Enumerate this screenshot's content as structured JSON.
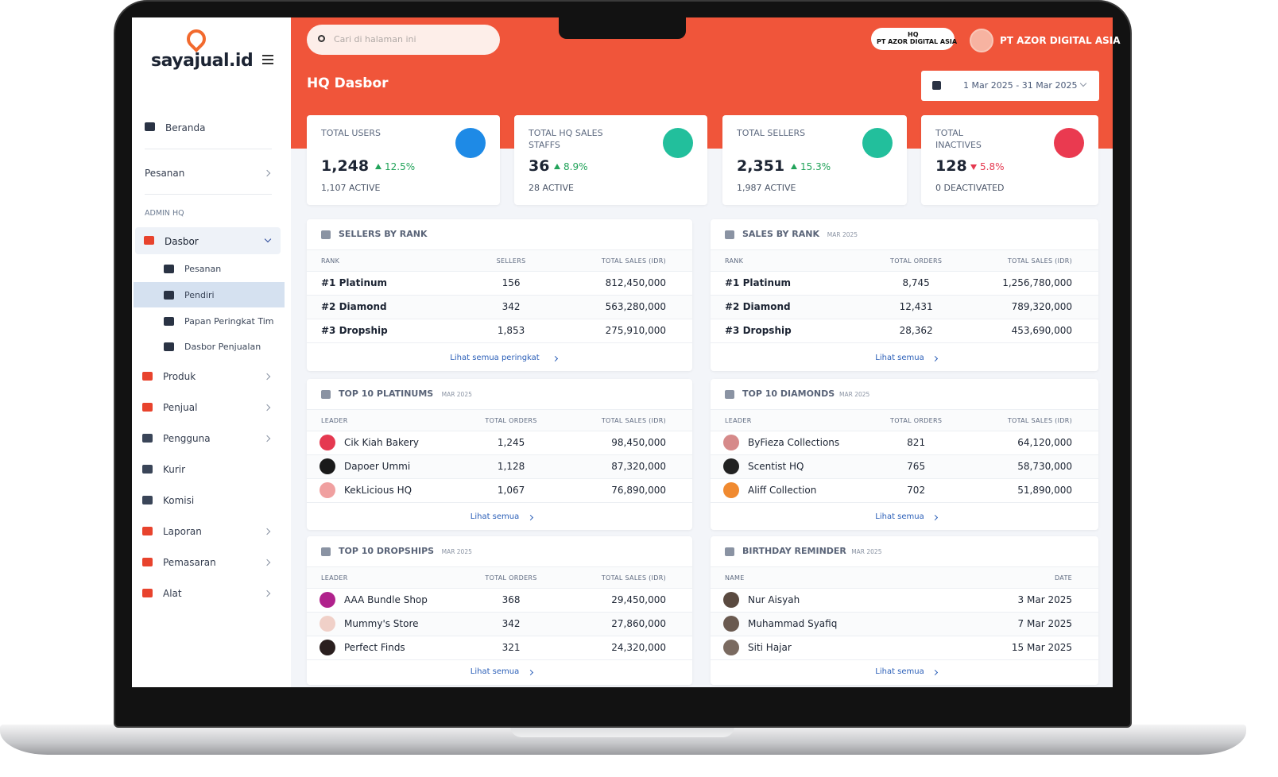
{
  "brand": "sayajual.id",
  "search_placeholder": "Cari di halaman ini",
  "header": {
    "page_title": "HQ Dasbor",
    "badge": [
      "HQ",
      "PT AZOR DIGITAL ASIA"
    ],
    "company": "PT AZOR DIGITAL ASIA",
    "date_range": "1 Mar 2025 - 31 Mar 2025"
  },
  "sidebar": {
    "top": [
      "Beranda",
      "Pesanan"
    ],
    "section": "ADMIN HQ",
    "active": "Dasbor",
    "sub": [
      "Pesanan",
      "Pendiri",
      "Papan Peringkat Tim",
      "Dasbor Penjualan"
    ],
    "items": [
      "Produk",
      "Penjual",
      "Pengguna",
      "Kurir",
      "Komisi",
      "Laporan",
      "Pemasaran",
      "Alat"
    ]
  },
  "stats": [
    {
      "label": "TOTAL USERS",
      "value": "1,248",
      "change": "12.5%",
      "trend": "up",
      "sub": "1,107 ACTIVE"
    },
    {
      "label": "TOTAL HQ SALES STAFFS",
      "value": "36",
      "change": "8.9%",
      "trend": "up",
      "sub": "28 ACTIVE"
    },
    {
      "label": "TOTAL SELLERS",
      "value": "2,351",
      "change": "15.3%",
      "trend": "up",
      "sub": "1,987 ACTIVE"
    },
    {
      "label": "TOTAL INACTIVES",
      "value": "128",
      "change": "5.8%",
      "trend": "down",
      "sub": "0 DEACTIVATED"
    }
  ],
  "panels": [
    {
      "title": "SELLERS BY RANK",
      "columns": [
        "RANK",
        "SELLERS",
        "TOTAL SALES (IDR)"
      ],
      "rows": [
        [
          "#1 Platinum",
          "156",
          "812,450,000"
        ],
        [
          "#2 Diamond",
          "342",
          "563,280,000"
        ],
        [
          "#3 Dropship",
          "1,853",
          "275,910,000"
        ]
      ],
      "link": "Lihat semua peringkat"
    },
    {
      "title": "SALES BY RANK",
      "period": "MAR 2025",
      "columns": [
        "RANK",
        "TOTAL ORDERS",
        "TOTAL SALES (IDR)"
      ],
      "rows": [
        [
          "#1 Platinum",
          "8,745",
          "1,256,780,000"
        ],
        [
          "#2 Diamond",
          "12,431",
          "789,320,000"
        ],
        [
          "#3 Dropship",
          "28,362",
          "453,690,000"
        ]
      ],
      "link": "Lihat semua"
    },
    {
      "title": "TOP 10 PLATINUMS",
      "period": "MAR 2025",
      "columns": [
        "LEADER",
        "TOTAL ORDERS",
        "TOTAL SALES (IDR)"
      ],
      "rows": [
        [
          "Cik Kiah Bakery",
          "1,245",
          "98,450,000"
        ],
        [
          "Dapoer Ummi",
          "1,128",
          "87,320,000"
        ],
        [
          "KekLicious HQ",
          "1,067",
          "76,890,000"
        ]
      ],
      "link": "Lihat semua"
    },
    {
      "title": "TOP 10 DIAMONDS",
      "period": "MAR 2025",
      "columns": [
        "LEADER",
        "TOTAL ORDERS",
        "TOTAL SALES (IDR)"
      ],
      "rows": [
        [
          "ByFieza Collections",
          "821",
          "64,120,000"
        ],
        [
          "Scentist HQ",
          "765",
          "58,730,000"
        ],
        [
          "Aliff Collection",
          "702",
          "51,890,000"
        ]
      ],
      "link": "Lihat semua"
    },
    {
      "title": "TOP 10 DROPSHIPS",
      "period": "MAR 2025",
      "columns": [
        "LEADER",
        "TOTAL ORDERS",
        "TOTAL SALES (IDR)"
      ],
      "rows": [
        [
          "AAA Bundle Shop",
          "368",
          "29,450,000"
        ],
        [
          "Mummy's Store",
          "342",
          "27,860,000"
        ],
        [
          "Perfect Finds",
          "321",
          "24,320,000"
        ]
      ],
      "link": "Lihat semua"
    },
    {
      "title": "BIRTHDAY REMINDER",
      "period": "MAR 2025",
      "columns": [
        "NAME",
        "DATE"
      ],
      "rows": [
        [
          "Nur Aisyah",
          "3 Mar 2025"
        ],
        [
          "Muhammad Syafiq",
          "7 Mar 2025"
        ],
        [
          "Siti Hajar",
          "15 Mar 2025"
        ]
      ],
      "link": "Lihat semua"
    }
  ]
}
